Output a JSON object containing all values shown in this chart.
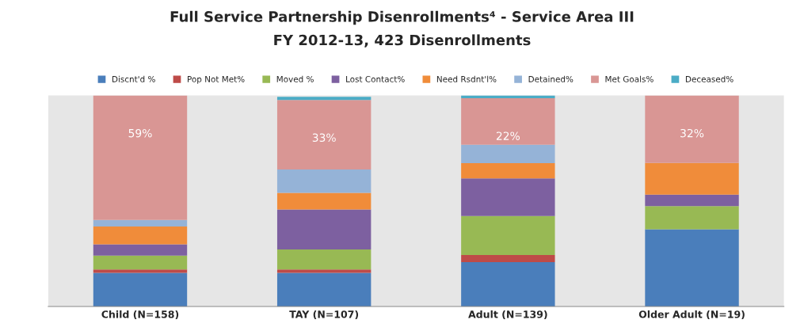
{
  "chart_data": {
    "type": "bar",
    "title": "Full Service Partnership Disenrollments⁴ - Service Area III",
    "subtitle": "FY 2012-13, 423 Disenrollments",
    "categories": [
      "Child (N=158)",
      "TAY (N=107)",
      "Adult (N=139)",
      "Older Adult (N=19)"
    ],
    "stacked": true,
    "ylim": [
      0,
      100
    ],
    "tick_labels": "x",
    "legend": "top",
    "grid": false,
    "series": [
      {
        "name": "Discnt'd %",
        "color": "#4a7ebb",
        "values": [
          16,
          16,
          21,
          36.6
        ]
      },
      {
        "name": "Pop Not Met%",
        "color": "#be4b48",
        "values": [
          1.6,
          1.6,
          3.4,
          null
        ]
      },
      {
        "name": "Moved %",
        "color": "#98b954",
        "values": [
          6.5,
          9.4,
          18.5,
          11
        ]
      },
      {
        "name": "Lost Contact%",
        "color": "#7d60a0",
        "values": [
          5.4,
          19,
          17.8,
          5.4
        ]
      },
      {
        "name": "Need Rsdnt'l%",
        "color": "#f08c3a",
        "values": [
          8.4,
          7.9,
          7.2,
          15
        ]
      },
      {
        "name": "Detained%",
        "color": "#95b3d7",
        "values": [
          3.1,
          11,
          8.8,
          null
        ]
      },
      {
        "name": "Met Goals%",
        "color": "#d99694",
        "values": [
          59,
          33,
          22,
          32
        ],
        "value_labels": [
          "59%",
          "33%",
          "22%",
          "32%"
        ]
      },
      {
        "name": "Deceased%",
        "color": "#4bacc6",
        "values": [
          null,
          1.5,
          1.3,
          null
        ]
      }
    ]
  }
}
